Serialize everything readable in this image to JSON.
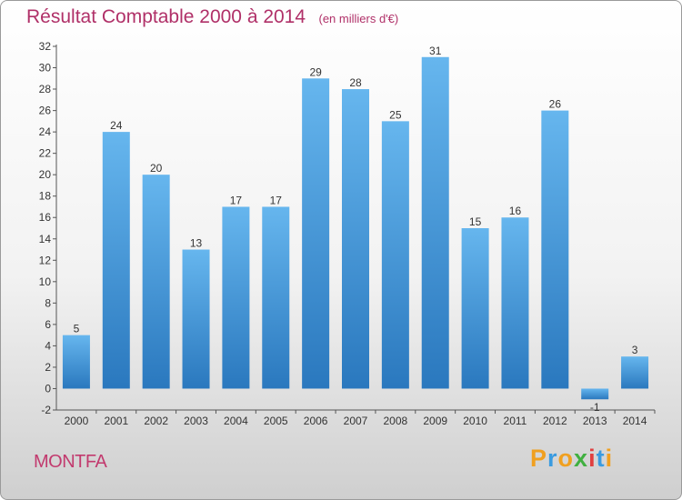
{
  "title": "Résultat Comptable 2000 à 2014",
  "subtitle": "(en milliers d'€)",
  "commune": "MONTFA",
  "logo": {
    "text": "Proxiti",
    "letters": [
      "P",
      "r",
      "o",
      "x",
      "i",
      "t",
      "i"
    ],
    "colors": [
      "#f0a020",
      "#3a9be0",
      "#f0a020",
      "#40b040",
      "#e04040",
      "#3a9be0",
      "#f0a020"
    ]
  },
  "colors": {
    "bar": "#3a8fd8",
    "title": "#b03068",
    "axis": "#555555"
  },
  "chart_data": {
    "type": "bar",
    "title": "Résultat Comptable 2000 à 2014",
    "subtitle": "(en milliers d'€)",
    "categories": [
      "2000",
      "2001",
      "2002",
      "2003",
      "2004",
      "2005",
      "2006",
      "2007",
      "2008",
      "2009",
      "2010",
      "2011",
      "2012",
      "2013",
      "2014"
    ],
    "values": [
      5,
      24,
      20,
      13,
      17,
      17,
      29,
      28,
      25,
      31,
      15,
      16,
      26,
      -1,
      3
    ],
    "yticks": [
      -2,
      0,
      2,
      4,
      6,
      8,
      10,
      12,
      14,
      16,
      18,
      20,
      22,
      24,
      26,
      28,
      30,
      32
    ],
    "ylim": [
      -2,
      32
    ],
    "grid": false,
    "legend": "none"
  }
}
